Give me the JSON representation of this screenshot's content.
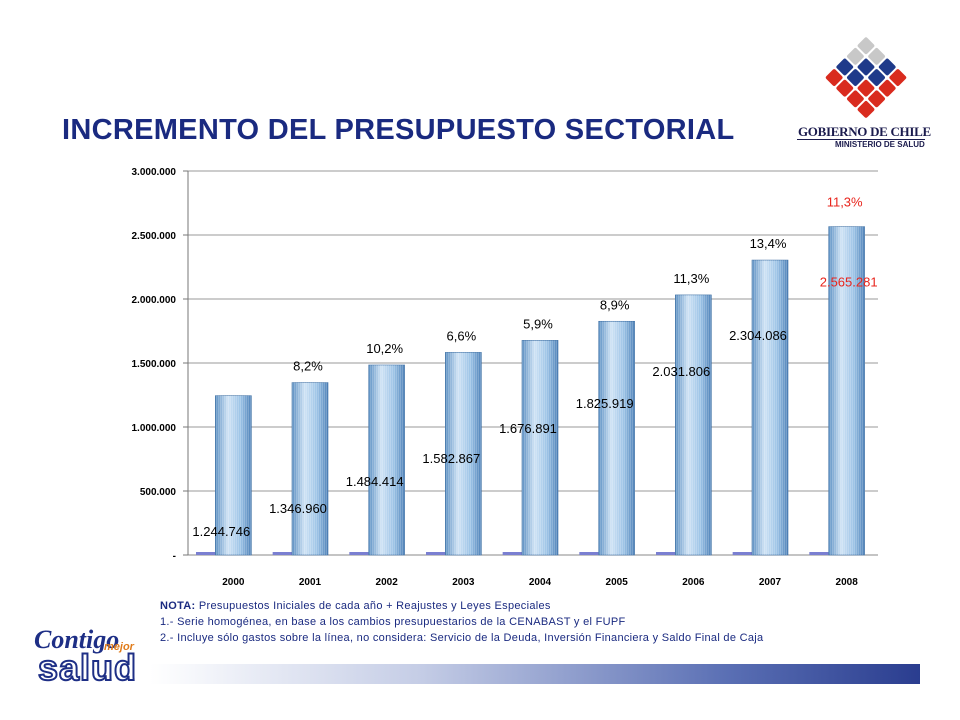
{
  "title": "INCREMENTO DEL PRESUPUESTO SECTORIAL",
  "logo": {
    "line1": "GOBIERNO DE CHILE",
    "line2": "MINISTERIO DE SALUD"
  },
  "brand": {
    "word1": "Contigo",
    "word2": "mejor",
    "word3": "salud"
  },
  "note": {
    "label": "NOTA:",
    "line0": "Presupuestos Iniciales de cada año + Reajustes y Leyes Especiales",
    "line1": "1.- Serie homogénea, en base a los cambios presupuestarios de la CENABAST y el FUPF",
    "line2": "2.- Incluye sólo gastos sobre la línea, no considera: Servicio de la Deuda, Inversión Financiera y Saldo Final de Caja"
  },
  "colors": {
    "title": "#1a2a80",
    "bar": "#9cc3e6",
    "bar_dark": "#5b8fc2",
    "highlight": "#e8241c",
    "baseline_marker": "#7a7fd1"
  },
  "chart_data": {
    "type": "bar",
    "categories": [
      "2000",
      "2001",
      "2002",
      "2003",
      "2004",
      "2005",
      "2006",
      "2007",
      "2008"
    ],
    "values": [
      1244746,
      1346960,
      1484414,
      1582867,
      1676891,
      1825919,
      2031806,
      2304086,
      2565281
    ],
    "value_labels": [
      "1.244.746",
      "1.346.960",
      "1.484.414",
      "1.582.867",
      "1.676.891",
      "1.825.919",
      "2.031.806",
      "2.304.086",
      "2.565.281"
    ],
    "growth_labels": [
      "",
      "8,2%",
      "10,2%",
      "6,6%",
      "5,9%",
      "8,9%",
      "11,3%",
      "13,4%",
      "11,3%"
    ],
    "highlight_index": 8,
    "ylim": [
      0,
      3000000
    ],
    "yticks": [
      "-",
      "500.000",
      "1.000.000",
      "1.500.000",
      "2.000.000",
      "2.500.000",
      "3.000.000"
    ],
    "grid": true,
    "legend": "none"
  }
}
